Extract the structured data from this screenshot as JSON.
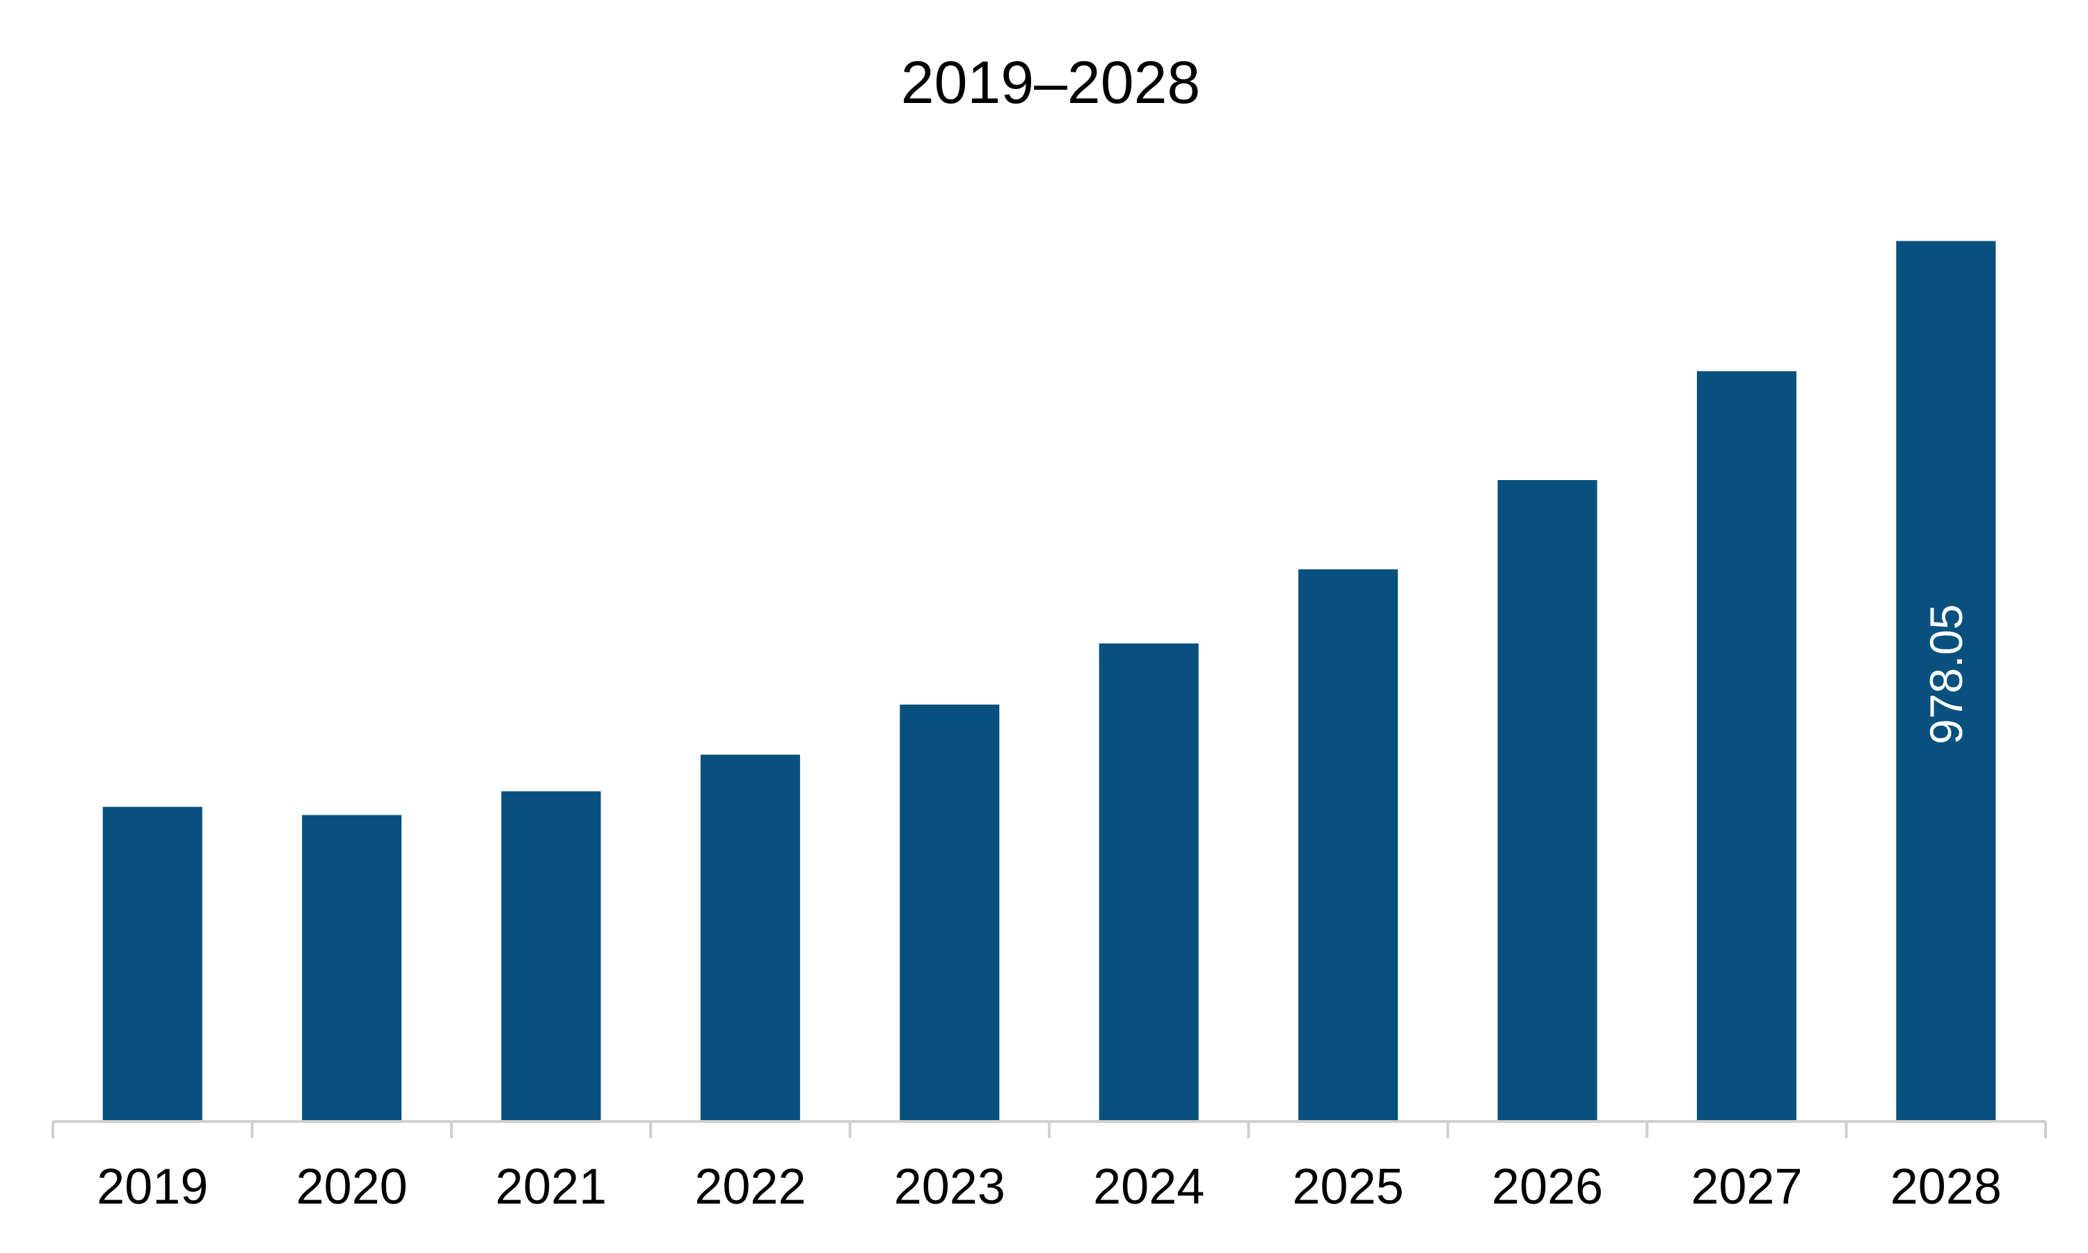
{
  "colors": {
    "bar": "#08517E",
    "axis": "#D0D0D0",
    "background": "#FFFFFF",
    "data_label": "#FFFFFF"
  },
  "chart_data": {
    "type": "bar",
    "title": "2019–2028",
    "xlabel": "",
    "ylabel": "",
    "categories": [
      "2019",
      "2020",
      "2021",
      "2022",
      "2023",
      "2024",
      "2025",
      "2026",
      "2027",
      "2028"
    ],
    "values": [
      349.5,
      340.4,
      366.8,
      407.5,
      463.1,
      531.1,
      613.4,
      712.5,
      833.5,
      978.05
    ],
    "data_labels": [
      "",
      "",
      "",
      "",
      "",
      "",
      "",
      "",
      "",
      "978.05"
    ],
    "ylim": [
      0,
      1000
    ],
    "grid": false,
    "legend": "none"
  }
}
